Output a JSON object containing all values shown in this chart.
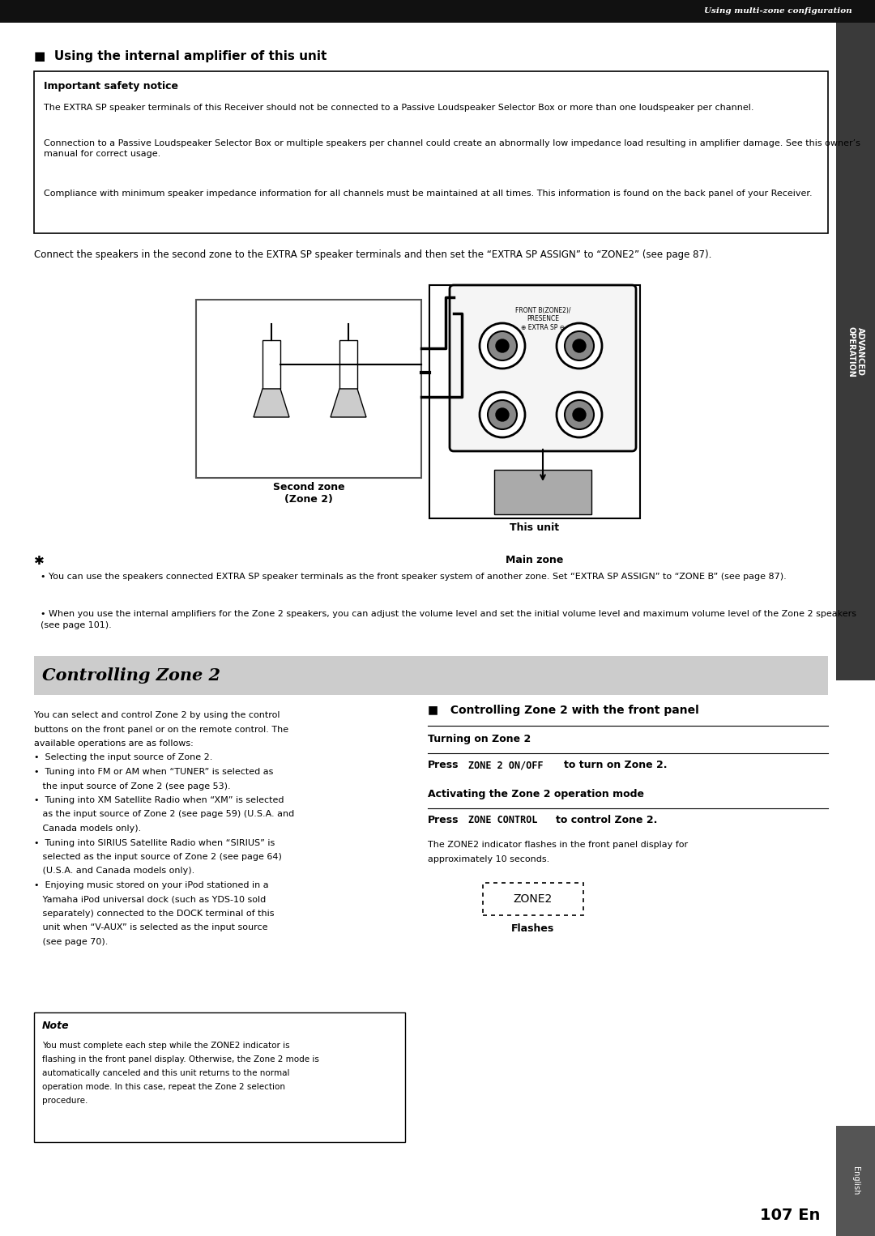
{
  "page_width": 10.8,
  "page_height": 15.26,
  "bg_color": "#ffffff",
  "top_bar_color": "#111111",
  "top_bar_text": "Using multi-zone configuration",
  "section1_title": "■  Using the internal amplifier of this unit",
  "safety_box_title": "Important safety notice",
  "safety_text1": "The EXTRA SP speaker terminals of this Receiver should not be connected to a Passive Loudspeaker Selector Box or more than one loudspeaker per channel.",
  "safety_text2": "Connection to a Passive Loudspeaker Selector Box or multiple speakers per channel could create an abnormally low impedance load resulting in amplifier damage. See this owner’s manual for correct usage.",
  "safety_text3": "Compliance with minimum speaker impedance information for all channels must be maintained at all times. This information is found on the back panel of your Receiver.",
  "connect_text": "Connect the speakers in the second zone to the EXTRA SP speaker terminals and then set the “EXTRA SP ASSIGN” to “ZONE2” (see page 87).",
  "second_zone_label": "Second zone\n(Zone 2)",
  "this_unit_label": "This unit",
  "main_zone_label": "Main zone",
  "tip_bullet1": "You can use the speakers connected EXTRA SP speaker terminals as the front speaker system of another zone. Set “EXTRA SP ASSIGN” to “ZONE B” (see page 87).",
  "tip_bullet2": "When you use the internal amplifiers for the Zone 2 speakers, you can adjust the volume level and set the initial volume level and maximum volume level of the Zone 2 speakers (see page 101).",
  "section2_title": "Controlling Zone 2",
  "section2_bg": "#cccccc",
  "left_body_lines": [
    "You can select and control Zone 2 by using the control",
    "buttons on the front panel or on the remote control. The",
    "available operations are as follows:",
    "•  Selecting the input source of Zone 2.",
    "•  Tuning into FM or AM when “TUNER” is selected as",
    "   the input source of Zone 2 (see page 53).",
    "•  Tuning into XM Satellite Radio when “XM” is selected",
    "   as the input source of Zone 2 (see page 59) (U.S.A. and",
    "   Canada models only).",
    "•  Tuning into SIRIUS Satellite Radio when “SIRIUS” is",
    "   selected as the input source of Zone 2 (see page 64)",
    "   (U.S.A. and Canada models only).",
    "•  Enjoying music stored on your iPod stationed in a",
    "   Yamaha iPod universal dock (such as YDS-10 sold",
    "   separately) connected to the DOCK terminal of this",
    "   unit when “V-AUX” is selected as the input source",
    "   (see page 70)."
  ],
  "right_section_title": "■   Controlling Zone 2 with the front panel",
  "turning_on_title": "Turning on Zone 2",
  "activating_title": "Activating the Zone 2 operation mode",
  "zone2_desc_line1": "The ZONE2 indicator flashes in the front panel display for",
  "zone2_desc_line2": "approximately 10 seconds.",
  "zone2_label": "ZONE2",
  "flashes_label": "Flashes",
  "note_box_title": "Note",
  "note_text_lines": [
    "You must complete each step while the ZONE2 indicator is",
    "flashing in the front panel display. Otherwise, the Zone 2 mode is",
    "automatically canceled and this unit returns to the normal",
    "operation mode. In this case, repeat the Zone 2 selection",
    "procedure."
  ],
  "right_sidebar_color": "#3a3a3a",
  "english_sidebar_color": "#555555",
  "page_number": "107 En"
}
